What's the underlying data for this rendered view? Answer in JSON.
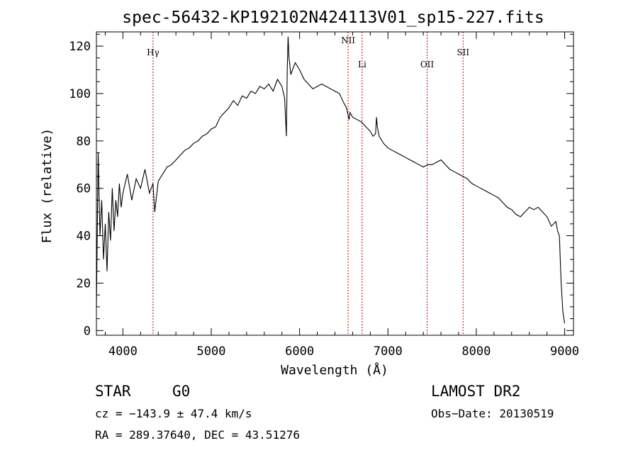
{
  "chart_data": {
    "type": "line",
    "title": "spec-56432-KP192102N424113V01_sp15-227.fits",
    "xlabel": "Wavelength (Å)",
    "ylabel": "Flux (relative)",
    "xlim": [
      3700,
      9100
    ],
    "ylim": [
      -2,
      126
    ],
    "x_ticks": [
      4000,
      5000,
      6000,
      7000,
      8000,
      9000
    ],
    "y_ticks": [
      0,
      20,
      40,
      60,
      80,
      100,
      120
    ],
    "grid": false,
    "series": [
      {
        "x": [
          3700,
          3720,
          3740,
          3760,
          3780,
          3800,
          3820,
          3840,
          3860,
          3880,
          3900,
          3920,
          3940,
          3960,
          3980,
          4000,
          4050,
          4100,
          4150,
          4200,
          4250,
          4300,
          4340,
          4360,
          4400,
          4450,
          4500,
          4550,
          4600,
          4650,
          4700,
          4750,
          4800,
          4850,
          4900,
          4950,
          5000,
          5050,
          5100,
          5150,
          5200,
          5250,
          5300,
          5350,
          5400,
          5450,
          5500,
          5550,
          5600,
          5650,
          5700,
          5750,
          5800,
          5830,
          5850,
          5860,
          5870,
          5880,
          5890,
          5900,
          5950,
          6000,
          6050,
          6100,
          6150,
          6200,
          6250,
          6300,
          6350,
          6400,
          6450,
          6500,
          6530,
          6560,
          6570,
          6600,
          6650,
          6700,
          6750,
          6800,
          6830,
          6860,
          6870,
          6880,
          6900,
          6950,
          7000,
          7050,
          7100,
          7150,
          7200,
          7250,
          7300,
          7350,
          7400,
          7450,
          7500,
          7550,
          7600,
          7650,
          7700,
          7750,
          7800,
          7850,
          7900,
          7950,
          8000,
          8050,
          8100,
          8150,
          8200,
          8250,
          8300,
          8350,
          8400,
          8450,
          8500,
          8550,
          8600,
          8650,
          8700,
          8750,
          8800,
          8850,
          8900,
          8920,
          8940,
          8960,
          8980,
          9000
        ],
        "y": [
          10,
          75,
          40,
          55,
          30,
          45,
          25,
          50,
          38,
          60,
          42,
          55,
          48,
          62,
          52,
          58,
          66,
          55,
          64,
          60,
          68,
          58,
          62,
          50,
          63,
          66,
          69,
          70,
          72,
          74,
          76,
          77,
          79,
          80,
          82,
          83,
          85,
          86,
          90,
          92,
          94,
          97,
          95,
          99,
          98,
          101,
          100,
          103,
          102,
          104,
          101,
          106,
          103,
          98,
          82,
          110,
          124,
          115,
          112,
          108,
          113,
          110,
          106,
          104,
          102,
          103,
          104,
          103,
          102,
          101,
          100,
          96,
          94,
          89,
          92,
          90,
          89,
          88,
          86,
          84,
          82,
          83,
          90,
          86,
          82,
          79,
          77,
          76,
          75,
          74,
          73,
          72,
          71,
          70,
          69,
          70,
          70,
          71,
          72,
          70,
          68,
          67,
          66,
          65,
          64,
          62,
          61,
          60,
          59,
          58,
          57,
          56,
          54,
          52,
          51,
          49,
          48,
          50,
          52,
          51,
          52,
          50,
          48,
          44,
          46,
          42,
          40,
          20,
          8,
          3
        ]
      }
    ],
    "lines": [
      {
        "label": "Hγ",
        "x": 4341
      },
      {
        "label": "NII",
        "x": 6549
      },
      {
        "label": "Li",
        "x": 6708
      },
      {
        "label": "OII",
        "x": 7443
      },
      {
        "label": "SII",
        "x": 7850
      }
    ]
  },
  "info": {
    "class": "STAR",
    "subclass": "G0",
    "survey": "LAMOST DR2",
    "cz": "cz = −143.9 ± 47.4 km/s",
    "obs_date": "Obs−Date: 20130519",
    "coords": "RA = 289.37640, DEC =  43.51276"
  },
  "colors": {
    "spectrum": "#000000",
    "line_marker": "#c00000",
    "axes": "#000000"
  }
}
